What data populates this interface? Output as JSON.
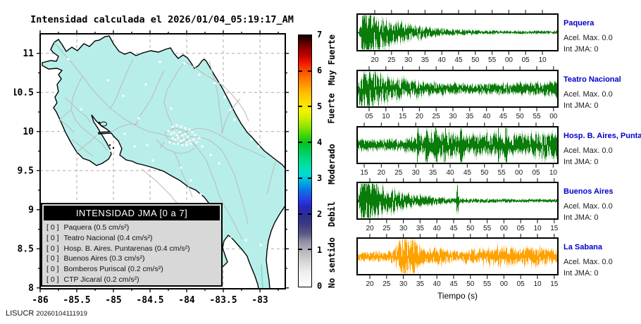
{
  "title": "Intensidad calculada el 2026/01/04_05:19:17_AM",
  "footer": {
    "agency": "LISUCR",
    "code": "20260104111919"
  },
  "map": {
    "x_tick_labels": [
      "-86",
      "-85.5",
      "-85",
      "-84.5",
      "-84",
      "-83.5",
      "-83"
    ],
    "y_tick_labels": [
      "11",
      "10.5",
      "10",
      "9.5",
      "9",
      "8.5",
      "8"
    ],
    "land_color": "#b7eeea",
    "road_color": "#bdbdbd",
    "station_color": "#ffffff",
    "grid_color": "#aaaaaa",
    "legend": {
      "title": "INTENSIDAD JMA [0 a 7]",
      "entries": [
        {
          "value": "[ 0 ]",
          "label": "Paquera (0.5 cm/s²)"
        },
        {
          "value": "[ 0 ]",
          "label": "Teatro Nacional (0.4 cm/s²)"
        },
        {
          "value": "[ 0 ]",
          "label": "Hosp. B. Aires. Puntarenas (0.4 cm/s²)"
        },
        {
          "value": "[ 0 ]",
          "label": "Buenos Aires (0.3 cm/s²)"
        },
        {
          "value": "[ 0 ]",
          "label": "Bomberos Puriscal (0.2 cm/s²)"
        },
        {
          "value": "[ 0 ]",
          "label": "CTP Jicaral (0.2 cm/s²)"
        }
      ]
    }
  },
  "colorbar": {
    "min": 0,
    "max": 7,
    "tick_labels": [
      "0",
      "1",
      "2",
      "3",
      "4",
      "5",
      "6",
      "7"
    ],
    "category_labels": [
      {
        "text": "No sentido",
        "center_value": 0.65
      },
      {
        "text": "Debil",
        "center_value": 2.0
      },
      {
        "text": "Moderado",
        "center_value": 3.4
      },
      {
        "text": "Fuerte",
        "center_value": 4.95
      },
      {
        "text": "Muy Fuerte",
        "center_value": 6.3
      }
    ],
    "gradient_stops": [
      [
        0.0,
        "#ffffff"
      ],
      [
        0.06,
        "#ededed"
      ],
      [
        0.11,
        "#cfcfcf"
      ],
      [
        0.14,
        "#b8b8bc"
      ],
      [
        0.18,
        "#8f8fa3"
      ],
      [
        0.21,
        "#5a5a86"
      ],
      [
        0.25,
        "#3a3a7e"
      ],
      [
        0.285,
        "#2c2c96"
      ],
      [
        0.32,
        "#2626c3"
      ],
      [
        0.35,
        "#2743e8"
      ],
      [
        0.385,
        "#0a77e6"
      ],
      [
        0.42,
        "#00b4e0"
      ],
      [
        0.445,
        "#00dcd2"
      ],
      [
        0.475,
        "#00e0ae"
      ],
      [
        0.51,
        "#00d884"
      ],
      [
        0.545,
        "#00cc4f"
      ],
      [
        0.57,
        "#06c21e"
      ],
      [
        0.6,
        "#3bd30a"
      ],
      [
        0.635,
        "#8ae400"
      ],
      [
        0.67,
        "#cdef00"
      ],
      [
        0.7,
        "#f2f200"
      ],
      [
        0.73,
        "#fbe000"
      ],
      [
        0.77,
        "#ffbe00"
      ],
      [
        0.8,
        "#ff9a00"
      ],
      [
        0.83,
        "#ff7300"
      ],
      [
        0.86,
        "#ff4700"
      ],
      [
        0.89,
        "#f01800"
      ],
      [
        0.92,
        "#c00000"
      ],
      [
        0.95,
        "#8c0000"
      ],
      [
        0.975,
        "#4d0000"
      ],
      [
        1.0,
        "#120000"
      ]
    ]
  },
  "chart_data": {
    "type": "line",
    "description": "Five seismic acceleration traces (amplitude normalized 0-1 envelope vs time in seconds, ticks every 5 s). All stations report Acel. Max. 0.0 and JMA intensity 0.",
    "xlabel": "Tiempo (s)",
    "panels": [
      {
        "station": "Paquera",
        "acel": "Acel. Max. 0.0",
        "jma": "Int JMA: 0",
        "color": "#0a7c0a",
        "halo": "#8cc48c",
        "x_tick_labels": [
          "20",
          "25",
          "30",
          "35",
          "40",
          "45",
          "50",
          "55",
          "00",
          "05",
          "10"
        ],
        "tick_offset": 24,
        "tick_step": 23.8,
        "amp": 26,
        "seed": 11,
        "envelope": [
          [
            0,
            0.05
          ],
          [
            0.01,
            0.2
          ],
          [
            0.02,
            0.75
          ],
          [
            0.035,
            1.1
          ],
          [
            0.05,
            0.85
          ],
          [
            0.08,
            0.68
          ],
          [
            0.12,
            0.55
          ],
          [
            0.17,
            0.45
          ],
          [
            0.23,
            0.34
          ],
          [
            0.3,
            0.24
          ],
          [
            0.38,
            0.16
          ],
          [
            0.48,
            0.11
          ],
          [
            0.6,
            0.08
          ],
          [
            0.75,
            0.065
          ],
          [
            1,
            0.06
          ]
        ],
        "spikes": [
          [
            0.025,
            0.5
          ]
        ]
      },
      {
        "station": "Teatro Nacional",
        "acel": "Acel. Max. 0.0",
        "jma": "Int JMA: 0",
        "color": "#0a7c0a",
        "halo": "#8cc48c",
        "x_tick_labels": [
          "05",
          "10",
          "15",
          "20",
          "25",
          "30",
          "35",
          "40",
          "45",
          "50",
          "55",
          "00"
        ],
        "tick_offset": 16,
        "tick_step": 23.8,
        "amp": 24,
        "seed": 22,
        "envelope": [
          [
            0,
            0.3
          ],
          [
            0.015,
            0.9
          ],
          [
            0.03,
            1.0
          ],
          [
            0.06,
            0.8
          ],
          [
            0.1,
            0.62
          ],
          [
            0.15,
            0.48
          ],
          [
            0.21,
            0.4
          ],
          [
            0.28,
            0.33
          ],
          [
            0.36,
            0.27
          ],
          [
            0.45,
            0.22
          ],
          [
            0.55,
            0.2
          ],
          [
            0.65,
            0.21
          ],
          [
            0.75,
            0.23
          ],
          [
            0.85,
            0.25
          ],
          [
            0.93,
            0.27
          ],
          [
            1,
            0.3
          ]
        ],
        "spikes": []
      },
      {
        "station": "Hosp. B. Aires, Puntarenas",
        "acel": "Acel. Max. 0.0",
        "jma": "Int JMA: 0",
        "color": "#0a7c0a",
        "halo": "#8cc48c",
        "x_tick_labels": [
          "15",
          "20",
          "25",
          "30",
          "35",
          "40",
          "45",
          "50",
          "55",
          "00",
          "05",
          "10"
        ],
        "tick_offset": 9,
        "tick_step": 24.4,
        "amp": 24,
        "seed": 33,
        "envelope": [
          [
            0,
            0.22
          ],
          [
            0.06,
            0.24
          ],
          [
            0.12,
            0.2
          ],
          [
            0.18,
            0.22
          ],
          [
            0.24,
            0.24
          ],
          [
            0.28,
            0.3
          ],
          [
            0.31,
            0.42
          ],
          [
            0.34,
            0.38
          ],
          [
            0.37,
            0.45
          ],
          [
            0.4,
            0.5
          ],
          [
            0.44,
            0.46
          ],
          [
            0.48,
            0.52
          ],
          [
            0.52,
            0.46
          ],
          [
            0.56,
            0.4
          ],
          [
            0.6,
            0.44
          ],
          [
            0.64,
            0.48
          ],
          [
            0.68,
            0.44
          ],
          [
            0.72,
            0.4
          ],
          [
            0.76,
            0.42
          ],
          [
            0.8,
            0.38
          ],
          [
            0.85,
            0.42
          ],
          [
            0.9,
            0.46
          ],
          [
            0.95,
            0.5
          ],
          [
            1,
            0.56
          ]
        ],
        "spikes": [
          [
            0.3,
            0.9
          ],
          [
            0.345,
            0.65
          ],
          [
            0.392,
            0.85
          ],
          [
            0.438,
            0.7
          ],
          [
            0.52,
            0.55
          ],
          [
            0.705,
            0.45
          ],
          [
            0.745,
            1.0
          ]
        ]
      },
      {
        "station": "Buenos Aires",
        "acel": "Acel. Max. 0.0",
        "jma": "Int JMA: 0",
        "color": "#0a7c0a",
        "halo": "#8cc48c",
        "x_tick_labels": [
          "20",
          "25",
          "30",
          "35",
          "40",
          "45",
          "50",
          "55",
          "00",
          "05",
          "10",
          "15"
        ],
        "tick_offset": 17,
        "tick_step": 23.8,
        "amp": 26,
        "seed": 44,
        "envelope": [
          [
            0,
            0.1
          ],
          [
            0.01,
            0.5
          ],
          [
            0.025,
            1.0
          ],
          [
            0.045,
            0.85
          ],
          [
            0.07,
            0.65
          ],
          [
            0.1,
            0.55
          ],
          [
            0.14,
            0.45
          ],
          [
            0.19,
            0.36
          ],
          [
            0.25,
            0.27
          ],
          [
            0.32,
            0.2
          ],
          [
            0.4,
            0.14
          ],
          [
            0.48,
            0.1
          ],
          [
            0.58,
            0.08
          ],
          [
            0.7,
            0.07
          ],
          [
            0.85,
            0.06
          ],
          [
            1,
            0.06
          ]
        ],
        "spikes": [
          [
            0.5,
            0.5
          ]
        ]
      },
      {
        "station": "La Sabana",
        "acel": "Acel. Max. 0.0",
        "jma": "Int JMA: 0",
        "color": "#ffa200",
        "halo": "#ffd591",
        "x_tick_labels": [
          "20",
          "25",
          "30",
          "35",
          "40",
          "45",
          "50",
          "55",
          "00",
          "05",
          "10",
          "15"
        ],
        "tick_offset": 17,
        "tick_step": 23.8,
        "amp": 23,
        "seed": 55,
        "envelope": [
          [
            0,
            0.18
          ],
          [
            0.1,
            0.2
          ],
          [
            0.16,
            0.25
          ],
          [
            0.19,
            0.4
          ],
          [
            0.22,
            0.8
          ],
          [
            0.24,
            1.0
          ],
          [
            0.27,
            0.75
          ],
          [
            0.3,
            0.45
          ],
          [
            0.34,
            0.3
          ],
          [
            0.38,
            0.35
          ],
          [
            0.42,
            0.38
          ],
          [
            0.46,
            0.28
          ],
          [
            0.5,
            0.24
          ],
          [
            0.55,
            0.3
          ],
          [
            0.6,
            0.28
          ],
          [
            0.65,
            0.35
          ],
          [
            0.7,
            0.42
          ],
          [
            0.75,
            0.38
          ],
          [
            0.8,
            0.32
          ],
          [
            0.85,
            0.36
          ],
          [
            0.9,
            0.38
          ],
          [
            0.95,
            0.33
          ],
          [
            1,
            0.3
          ]
        ],
        "spikes": []
      }
    ]
  }
}
